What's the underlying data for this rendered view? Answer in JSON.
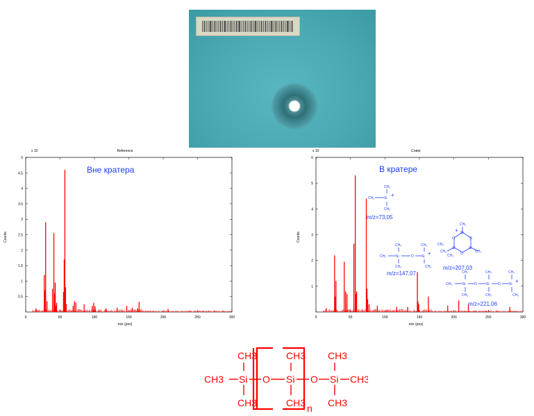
{
  "chart_data": [
    {
      "type": "bar",
      "title": "Reference",
      "annotation": "Вне кратера",
      "xlabel": "m/z (pos)",
      "ylabel": "Counts",
      "yscale_label": "x 10",
      "xlim": [
        0,
        300
      ],
      "ylim": [
        0,
        5
      ],
      "xticks": [
        0,
        50,
        100,
        150,
        200,
        250,
        300
      ],
      "yticks": [
        0.5,
        1,
        1.5,
        2,
        2.5,
        3,
        3.5,
        4,
        4.5,
        5
      ],
      "x": [
        15,
        27,
        28,
        29,
        31,
        39,
        41,
        42,
        43,
        44,
        45,
        55,
        56,
        57,
        58,
        59,
        69,
        71,
        73,
        85,
        97,
        99,
        101,
        117,
        133,
        147,
        155,
        163,
        165,
        207
      ],
      "y": [
        0.12,
        1.2,
        0.7,
        2.9,
        0.35,
        0.75,
        2.55,
        0.6,
        0.95,
        0.2,
        0.3,
        0.65,
        1.7,
        4.6,
        0.8,
        0.25,
        0.2,
        0.35,
        0.3,
        0.25,
        0.2,
        0.3,
        0.18,
        0.12,
        0.14,
        0.2,
        0.14,
        0.12,
        0.33,
        0.1
      ]
    },
    {
      "type": "bar",
      "title": "Crater",
      "annotation": "В кратере",
      "xlabel": "m/z (pos)",
      "ylabel": "Counts",
      "yscale_label": "x 10",
      "xlim": [
        0,
        300
      ],
      "ylim": [
        0,
        6
      ],
      "xticks": [
        0,
        50,
        100,
        150,
        200,
        250,
        300
      ],
      "yticks": [
        1,
        2,
        3,
        4,
        5,
        6
      ],
      "x": [
        15,
        27,
        28,
        29,
        41,
        43,
        45,
        55,
        57,
        58,
        59,
        73,
        74,
        75,
        77,
        89,
        117,
        133,
        147,
        148,
        149,
        163,
        191,
        207,
        221,
        281
      ],
      "y": [
        0.15,
        2.2,
        0.6,
        1.2,
        1.95,
        0.8,
        0.7,
        2.65,
        5.3,
        0.7,
        0.8,
        4.4,
        0.9,
        0.5,
        0.3,
        0.25,
        0.2,
        0.2,
        1.55,
        0.4,
        0.3,
        0.6,
        0.25,
        0.45,
        0.3,
        0.2
      ],
      "ion_annotations": [
        {
          "mz_label": "m/z=73,05"
        },
        {
          "mz_label": "m/z=147,07"
        },
        {
          "mz_label": "m/z=207,03"
        },
        {
          "mz_label": "m/z=221,06"
        }
      ]
    }
  ],
  "structure": {
    "groups": [
      "CH3",
      "CH3",
      "CH3",
      "CH3",
      "CH3",
      "CH3",
      "CH3",
      "CH3"
    ],
    "atoms": [
      "Si",
      "O",
      "Si",
      "O",
      "Si"
    ],
    "subscript": "n"
  },
  "colors": {
    "spectrum": "#ff0000",
    "annotation": "#1a3cff",
    "molecule": "#ff0000"
  }
}
